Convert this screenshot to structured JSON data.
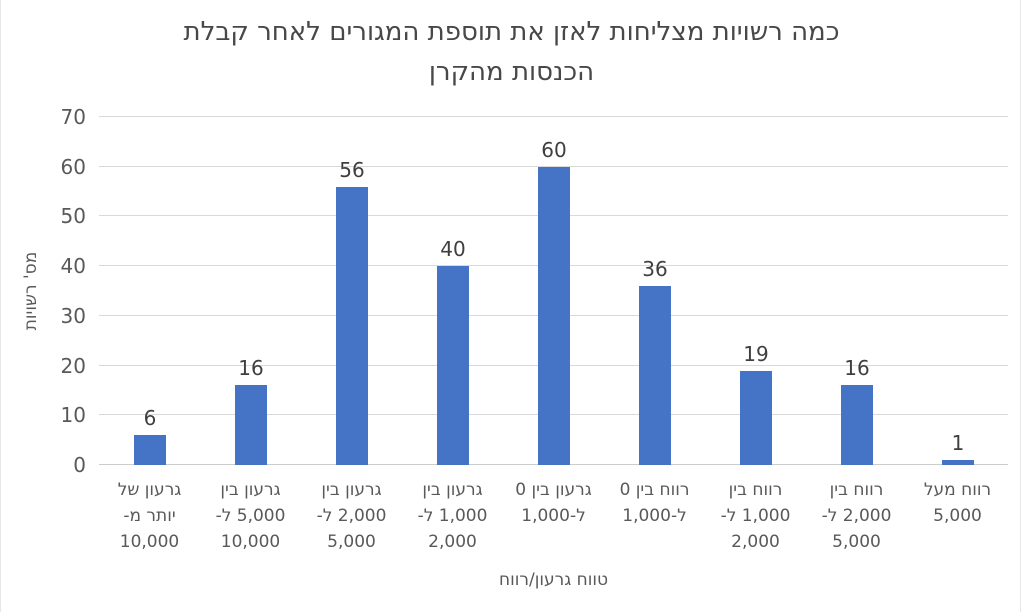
{
  "chart_data": {
    "type": "bar",
    "title": "כמה רשויות מצליחות לאזן את תוספת המגורים לאחר קבלת הכנסות מהקרן",
    "title_lines": [
      "כמה רשויות מצליחות לאזן את תוספת המגורים לאחר קבלת",
      "הכנסות מהקרן"
    ],
    "xlabel": "טווח גרעון/רווח",
    "ylabel": "מס' רשויות",
    "categories": [
      "גרעון של יותר מ-10,000",
      "גרעון בין 5,000 ל-10,000",
      "גרעון בין 2,000 ל-5,000",
      "גרעון בין 1,000 ל-2,000",
      "גרעון בין 0 ל-1,000",
      "רווח בין 0 ל-1,000",
      "רווח בין 1,000 ל-2,000",
      "רווח בין 2,000 ל-5,000",
      "רווח מעל 5,000"
    ],
    "category_lines": [
      [
        "גרעון של",
        "יותר מ-",
        "10,000"
      ],
      [
        "גרעון בין",
        "5,000 ל-",
        "10,000"
      ],
      [
        "גרעון בין",
        "2,000 ל-",
        "5,000"
      ],
      [
        "גרעון בין",
        "1,000 ל-",
        "2,000"
      ],
      [
        "גרעון בין 0",
        "ל-1,000"
      ],
      [
        "רווח בין 0",
        "ל-1,000"
      ],
      [
        "רווח בין",
        "1,000 ל-",
        "2,000"
      ],
      [
        "רווח בין",
        "2,000 ל-",
        "5,000"
      ],
      [
        "רווח מעל",
        "5,000"
      ]
    ],
    "values": [
      6,
      16,
      56,
      40,
      60,
      36,
      19,
      16,
      1
    ],
    "yticks": [
      0,
      10,
      20,
      30,
      40,
      50,
      60,
      70
    ],
    "ylim": [
      0,
      70
    ],
    "grid": "horizontal",
    "legend": "none",
    "bar_color": "#4574C7",
    "value_label_color": "#3F3F3F",
    "axis_text_color": "#595959",
    "title_color": "#484848",
    "gridline_color": "#D9D9D9",
    "background": "#FFFFFF"
  }
}
